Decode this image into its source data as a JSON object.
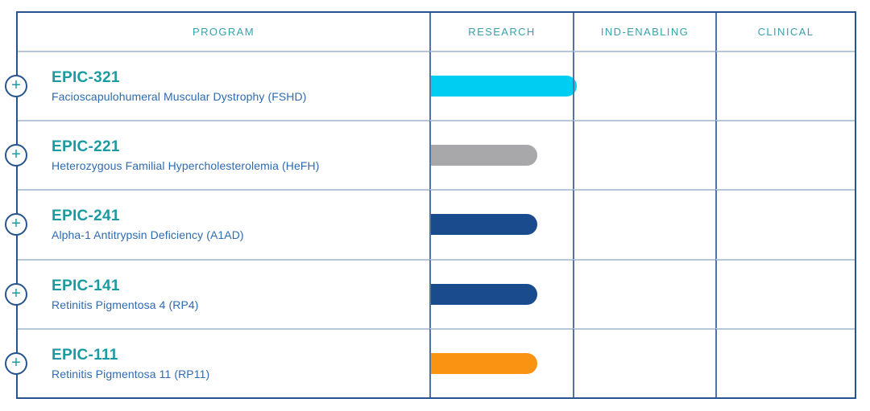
{
  "table": {
    "columns": [
      "PROGRAM",
      "RESEARCH",
      "IND-ENABLING",
      "CLINICAL"
    ],
    "expand_icon": "+",
    "rows": [
      {
        "code": "EPIC-321",
        "indication": "Facioscapulohumeral Muscular Dystrophy (FSHD)",
        "stage_reached": "RESEARCH",
        "progress_pct": 103,
        "bar_color": "#00cdf2"
      },
      {
        "code": "EPIC-221",
        "indication": "Heterozygous Familial Hypercholesterolemia (HeFH)",
        "stage_reached": "RESEARCH",
        "progress_pct": 75,
        "bar_color": "#a8a8aa"
      },
      {
        "code": "EPIC-241",
        "indication": "Alpha-1 Antitrypsin Deficiency (A1AD)",
        "stage_reached": "RESEARCH",
        "progress_pct": 75,
        "bar_color": "#1a4b8c"
      },
      {
        "code": "EPIC-141",
        "indication": "Retinitis Pigmentosa 4 (RP4)",
        "stage_reached": "RESEARCH",
        "progress_pct": 75,
        "bar_color": "#1a4b8c"
      },
      {
        "code": "EPIC-111",
        "indication": "Retinitis Pigmentosa 11 (RP11)",
        "stage_reached": "RESEARCH",
        "progress_pct": 75,
        "bar_color": "#f99311"
      }
    ]
  },
  "chart_data": {
    "type": "bar",
    "orientation": "horizontal",
    "title": "Program pipeline by development stage",
    "stages": [
      "RESEARCH",
      "IND-ENABLING",
      "CLINICAL"
    ],
    "categories": [
      "EPIC-321 (Facioscapulohumeral Muscular Dystrophy (FSHD))",
      "EPIC-221 (Heterozygous Familial Hypercholesterolemia (HeFH))",
      "EPIC-241 (Alpha-1 Antitrypsin Deficiency (A1AD))",
      "EPIC-141 (Retinitis Pigmentosa 4 (RP4))",
      "EPIC-111 (Retinitis Pigmentosa 11 (RP11))"
    ],
    "values": [
      1.03,
      0.75,
      0.75,
      0.75,
      0.75
    ],
    "value_units": "fraction of RESEARCH stage width",
    "bar_colors": [
      "#00cdf2",
      "#a8a8aa",
      "#1a4b8c",
      "#1a4b8c",
      "#f99311"
    ],
    "xlim": [
      0,
      3
    ],
    "grid": "table-cells",
    "legend": "none"
  },
  "colors": {
    "outer_border": "#27538e",
    "vertical_divider": "#54739f",
    "horizontal_divider": "#b7c7da",
    "header_teal": "#38a1ab",
    "program_code_teal": "#1a9ba1",
    "indication_blue": "#2e6bb2",
    "bar_cyan": "#00cdf2",
    "bar_gray": "#a8a8aa",
    "bar_navy": "#1a4b8c",
    "bar_orange": "#f99311"
  }
}
